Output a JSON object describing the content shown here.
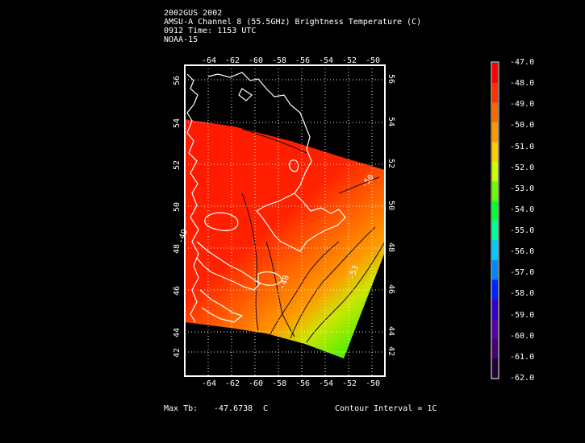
{
  "header": {
    "line1": "2002GUS 2002",
    "line2": "AMSU-A Channel 8 (55.5GHz) Brightness Temperature (C)",
    "line3": "0912 Time: 1153 UTC",
    "line4": "NOAA-15"
  },
  "map": {
    "lon_ticks": [
      "-64",
      "-62",
      "-60",
      "-58",
      "-56",
      "-54",
      "-52",
      "-50"
    ],
    "lat_ticks": [
      "56",
      "54",
      "52",
      "50",
      "48",
      "46",
      "44",
      "42"
    ],
    "contour_labels": [
      "-50",
      "-48",
      "-49",
      "-53"
    ]
  },
  "colorbar": {
    "labels": [
      "-47.0",
      "-48.0",
      "-49.0",
      "-50.0",
      "-51.0",
      "-52.0",
      "-53.0",
      "-54.0",
      "-55.0",
      "-56.0",
      "-57.0",
      "-58.0",
      "-59.0",
      "-60.0",
      "-61.0",
      "-62.0"
    ],
    "colors": [
      "#ff0000",
      "#ff3300",
      "#ff6600",
      "#ff9900",
      "#ffcc00",
      "#ccff00",
      "#66ff00",
      "#00ff33",
      "#00ff99",
      "#00ccff",
      "#0088ff",
      "#0022ff",
      "#3300cc",
      "#5500aa",
      "#440077",
      "#220033"
    ]
  },
  "footer": {
    "max_label": "Max Tb:",
    "max_value": "-47.6738",
    "max_unit": "C",
    "contour": "Contour Interval = 1C"
  }
}
